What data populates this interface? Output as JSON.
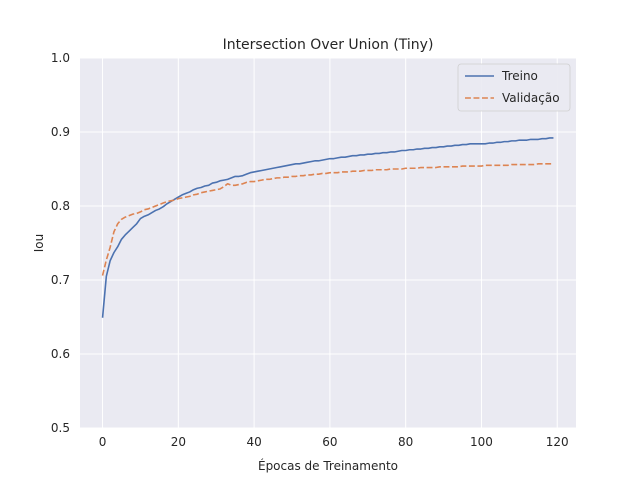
{
  "chart_data": {
    "type": "line",
    "title": "Intersection Over Union (Tiny)",
    "xlabel": "Épocas de Treinamento",
    "ylabel": "Iou",
    "xlim": [
      -5.95,
      124.95
    ],
    "ylim": [
      0.5,
      1.0
    ],
    "xticks": [
      0,
      20,
      40,
      60,
      80,
      100,
      120
    ],
    "yticks": [
      0.5,
      0.6,
      0.7,
      0.8,
      0.9,
      1.0
    ],
    "ytick_labels": [
      "0.5",
      "0.6",
      "0.7",
      "0.8",
      "0.9",
      "1.0"
    ],
    "grid": true,
    "legend_position": "top-right",
    "colors": {
      "background": "#eaeaf2",
      "grid": "#ffffff",
      "treino": "#4c72b0",
      "validacao": "#dd8452"
    },
    "series": [
      {
        "name": "Treino",
        "style": "solid",
        "values": [
          0.649,
          0.705,
          0.726,
          0.737,
          0.745,
          0.755,
          0.761,
          0.766,
          0.771,
          0.776,
          0.783,
          0.786,
          0.788,
          0.791,
          0.794,
          0.796,
          0.799,
          0.803,
          0.806,
          0.809,
          0.812,
          0.815,
          0.817,
          0.819,
          0.822,
          0.824,
          0.825,
          0.827,
          0.828,
          0.831,
          0.832,
          0.834,
          0.835,
          0.836,
          0.838,
          0.84,
          0.84,
          0.841,
          0.843,
          0.845,
          0.846,
          0.847,
          0.848,
          0.849,
          0.85,
          0.851,
          0.852,
          0.853,
          0.854,
          0.855,
          0.856,
          0.857,
          0.857,
          0.858,
          0.859,
          0.86,
          0.861,
          0.861,
          0.862,
          0.863,
          0.864,
          0.864,
          0.865,
          0.866,
          0.866,
          0.867,
          0.868,
          0.868,
          0.869,
          0.869,
          0.87,
          0.87,
          0.871,
          0.871,
          0.872,
          0.872,
          0.873,
          0.873,
          0.874,
          0.875,
          0.875,
          0.876,
          0.876,
          0.877,
          0.877,
          0.878,
          0.878,
          0.879,
          0.879,
          0.88,
          0.88,
          0.881,
          0.881,
          0.882,
          0.882,
          0.883,
          0.883,
          0.884,
          0.884,
          0.884,
          0.884,
          0.884,
          0.885,
          0.885,
          0.886,
          0.886,
          0.887,
          0.887,
          0.888,
          0.888,
          0.889,
          0.889,
          0.889,
          0.89,
          0.89,
          0.89,
          0.891,
          0.891,
          0.892,
          0.892
        ]
      },
      {
        "name": "Validação",
        "style": "dashed",
        "values": [
          0.706,
          0.727,
          0.744,
          0.765,
          0.776,
          0.782,
          0.785,
          0.787,
          0.789,
          0.79,
          0.792,
          0.795,
          0.796,
          0.798,
          0.8,
          0.802,
          0.804,
          0.806,
          0.807,
          0.808,
          0.81,
          0.811,
          0.812,
          0.813,
          0.815,
          0.816,
          0.818,
          0.819,
          0.82,
          0.821,
          0.822,
          0.823,
          0.826,
          0.83,
          0.828,
          0.828,
          0.829,
          0.83,
          0.832,
          0.833,
          0.833,
          0.834,
          0.835,
          0.836,
          0.836,
          0.837,
          0.838,
          0.838,
          0.839,
          0.839,
          0.84,
          0.84,
          0.841,
          0.841,
          0.842,
          0.842,
          0.843,
          0.843,
          0.844,
          0.844,
          0.845,
          0.845,
          0.845,
          0.846,
          0.846,
          0.846,
          0.847,
          0.847,
          0.847,
          0.848,
          0.848,
          0.848,
          0.849,
          0.849,
          0.849,
          0.849,
          0.85,
          0.85,
          0.85,
          0.85,
          0.851,
          0.851,
          0.851,
          0.851,
          0.852,
          0.852,
          0.852,
          0.852,
          0.852,
          0.853,
          0.853,
          0.853,
          0.853,
          0.853,
          0.853,
          0.854,
          0.854,
          0.854,
          0.854,
          0.854,
          0.854,
          0.855,
          0.855,
          0.855,
          0.855,
          0.855,
          0.855,
          0.855,
          0.856,
          0.856,
          0.856,
          0.856,
          0.856,
          0.856,
          0.856,
          0.857,
          0.857,
          0.857,
          0.857,
          0.857
        ]
      }
    ]
  }
}
